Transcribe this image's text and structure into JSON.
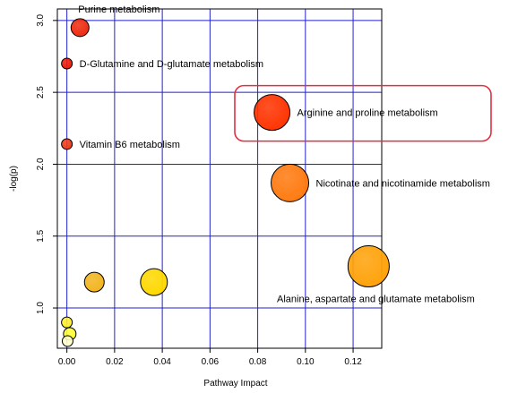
{
  "chart_data": {
    "type": "scatter",
    "title": "",
    "xlabel": "Pathway Impact",
    "ylabel": "-log(p)",
    "xlim": [
      -0.004,
      0.132
    ],
    "ylim": [
      0.72,
      3.08
    ],
    "x_ticks": [
      {
        "value": 0,
        "label": "0.00"
      },
      {
        "value": 0.02,
        "label": "0.02"
      },
      {
        "value": 0.04,
        "label": "0.04"
      },
      {
        "value": 0.06,
        "label": "0.06"
      },
      {
        "value": 0.08,
        "label": "0.08"
      },
      {
        "value": 0.1,
        "label": "0.10"
      },
      {
        "value": 0.12,
        "label": "0.12"
      }
    ],
    "y_ticks": [
      {
        "value": 1.0,
        "label": "1.0"
      },
      {
        "value": 1.5,
        "label": "1.5"
      },
      {
        "value": 2.0,
        "label": "2.0"
      },
      {
        "value": 2.5,
        "label": "2.5"
      },
      {
        "value": 3.0,
        "label": "3.0"
      }
    ],
    "grid": true,
    "grid_color": "#2222cc",
    "highlight_color": "#e03040",
    "points": [
      {
        "name": "Purine metabolism",
        "label": "Purine metabolism",
        "x": 0.0055,
        "y": 2.95,
        "size": 10,
        "color": "#ee2b10"
      },
      {
        "name": "D-Glutamine and D-glutamate metabolism",
        "label": "D-Glutamine and D-glutamate metabolism",
        "x": 0.0,
        "y": 2.7,
        "size": 6,
        "color": "#ee1a0a"
      },
      {
        "name": "Arginine and proline metabolism",
        "label": "Arginine and proline metabolism",
        "x": 0.086,
        "y": 2.36,
        "size": 20,
        "color": "#ff3300",
        "highlighted": true
      },
      {
        "name": "Vitamin B6 metabolism",
        "label": "Vitamin B6 metabolism",
        "x": 0.0,
        "y": 2.14,
        "size": 6,
        "color": "#ee3a18"
      },
      {
        "name": "Nicotinate and nicotinamide metabolism",
        "label": "Nicotinate and nicotinamide metabolism",
        "x": 0.0935,
        "y": 1.87,
        "size": 21,
        "color": "#ff7a10"
      },
      {
        "name": "Alanine, aspartate and glutamate metabolism",
        "label": "Alanine, aspartate and glutamate metabolism",
        "x": 0.1265,
        "y": 1.29,
        "size": 23,
        "color": "#ffa20a"
      },
      {
        "name": "point-7",
        "label": "",
        "x": 0.0115,
        "y": 1.18,
        "size": 11,
        "color": "#f2b520"
      },
      {
        "name": "point-8",
        "label": "",
        "x": 0.0365,
        "y": 1.18,
        "size": 15,
        "color": "#ffd800"
      },
      {
        "name": "point-9",
        "label": "",
        "x": 0.0,
        "y": 0.9,
        "size": 6,
        "color": "#ffee30"
      },
      {
        "name": "point-10",
        "label": "",
        "x": 0.0012,
        "y": 0.82,
        "size": 7,
        "color": "#ffff33"
      },
      {
        "name": "point-11",
        "label": "",
        "x": 0.0003,
        "y": 0.77,
        "size": 6,
        "color": "#ffffcc"
      }
    ]
  }
}
